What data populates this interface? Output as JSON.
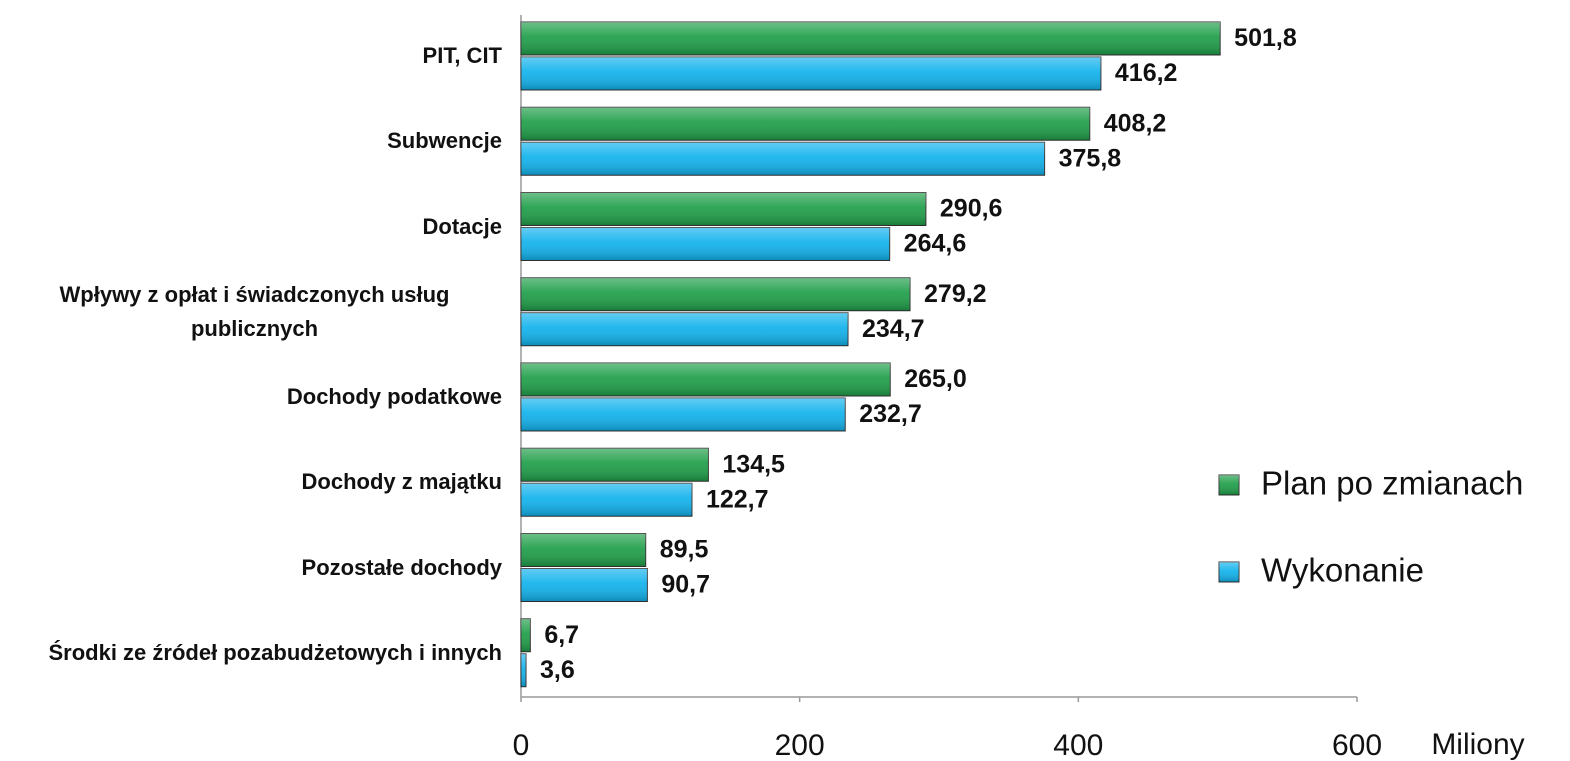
{
  "chart_data": {
    "type": "hbar",
    "categories": [
      "PIT, CIT",
      "Subwencje ",
      "Dotacje",
      "Wpływy z opłat i świadczonych usług publicznych",
      "Dochody podatkowe ",
      "Dochody z majątku",
      "Pozostałe dochody",
      "Środki ze źródeł pozabudżetowych i innych"
    ],
    "series": [
      {
        "name": "Plan po zmianach",
        "color": "#1e9e48",
        "values": [
          501.8,
          408.2,
          290.6,
          279.2,
          265.0,
          134.5,
          89.5,
          6.7
        ],
        "value_labels": [
          "501,8",
          "408,2",
          "290,6",
          "279,2",
          "265,0",
          "134,5",
          "89,5",
          "6,7"
        ]
      },
      {
        "name": "Wykonanie",
        "color": "#10b2ec",
        "values": [
          416.2,
          375.8,
          264.6,
          234.7,
          232.7,
          122.7,
          90.7,
          3.6
        ],
        "value_labels": [
          "416,2",
          "375,8",
          "264,6",
          "234,7",
          "232,7",
          "122,7",
          "90,7",
          "3,6"
        ]
      }
    ],
    "xlim": [
      0,
      600
    ],
    "xticks": [
      0,
      200,
      400,
      600
    ],
    "x_axis_label": "Miliony",
    "legend": "right"
  }
}
